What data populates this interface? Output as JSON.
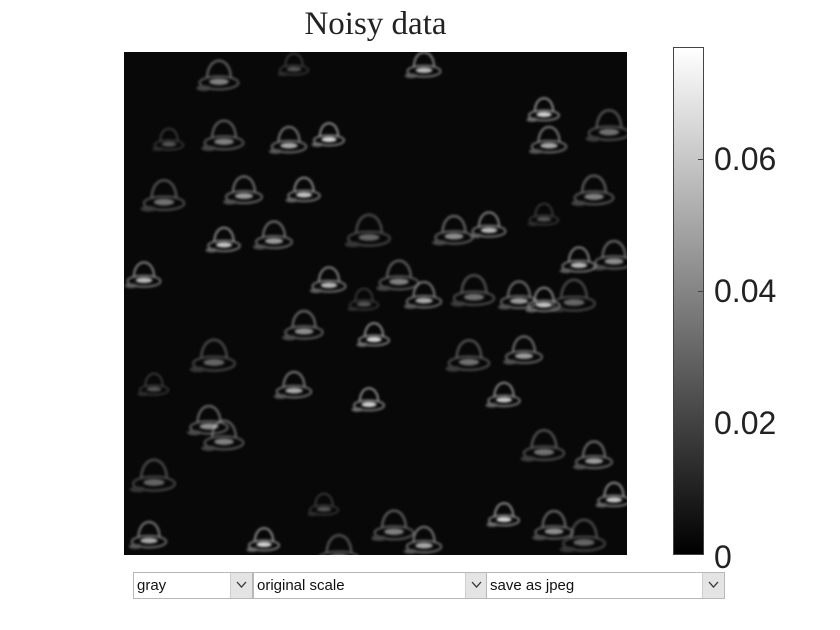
{
  "title": "Noisy data",
  "colorbar": {
    "ticks": [
      "0",
      "0.02",
      "0.04",
      "0.06"
    ],
    "tick_values": [
      0,
      0.02,
      0.04,
      0.06
    ],
    "range": [
      0,
      0.077
    ],
    "colormap": "gray"
  },
  "controls": {
    "colormap": {
      "value": "gray"
    },
    "scale": {
      "value": "original scale"
    },
    "export": {
      "value": "save as jpeg"
    }
  }
}
